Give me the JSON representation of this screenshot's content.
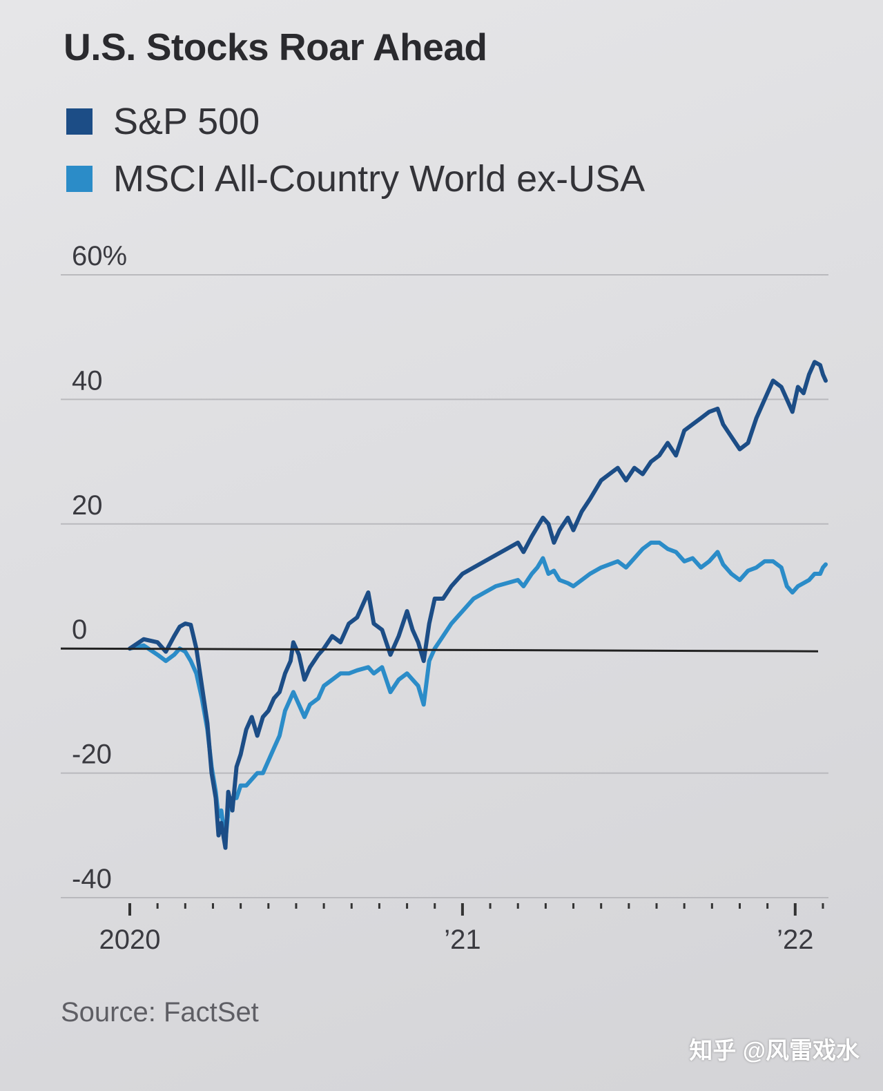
{
  "colors": {
    "sp500": "#1c4d86",
    "msci": "#2b8cc8",
    "grid": "#b9b9bd",
    "zero": "#222222",
    "text": "#3a3a40"
  },
  "source": "Source: FactSet",
  "watermark": "知乎 @风雷戏水",
  "chart_data": {
    "type": "line",
    "title": "U.S. Stocks Roar Ahead",
    "ylabel": "%",
    "ylim": [
      -40,
      60
    ],
    "yticks": [
      {
        "value": 60,
        "label": "60%"
      },
      {
        "value": 40,
        "label": "40"
      },
      {
        "value": 20,
        "label": "20"
      },
      {
        "value": 0,
        "label": "0"
      },
      {
        "value": -20,
        "label": "-20"
      },
      {
        "value": -40,
        "label": "-40"
      }
    ],
    "xlim": [
      0,
      25.2
    ],
    "xticks": [
      {
        "value": 0,
        "label": "2020"
      },
      {
        "value": 12,
        "label": "’21"
      },
      {
        "value": 24,
        "label": "’22"
      }
    ],
    "series": [
      {
        "name": "S&P 500",
        "points": [
          [
            0,
            0
          ],
          [
            0.5,
            1.5
          ],
          [
            1,
            1
          ],
          [
            1.3,
            -0.5
          ],
          [
            1.6,
            2
          ],
          [
            1.8,
            3.5
          ],
          [
            2,
            4
          ],
          [
            2.2,
            3.8
          ],
          [
            2.4,
            0
          ],
          [
            2.6,
            -6
          ],
          [
            2.8,
            -12
          ],
          [
            2.95,
            -20
          ],
          [
            3.1,
            -24
          ],
          [
            3.2,
            -30
          ],
          [
            3.3,
            -28
          ],
          [
            3.45,
            -32
          ],
          [
            3.55,
            -23
          ],
          [
            3.7,
            -26
          ],
          [
            3.85,
            -19
          ],
          [
            4,
            -17
          ],
          [
            4.2,
            -13
          ],
          [
            4.4,
            -11
          ],
          [
            4.6,
            -14
          ],
          [
            4.8,
            -11
          ],
          [
            5,
            -10
          ],
          [
            5.2,
            -8
          ],
          [
            5.4,
            -7
          ],
          [
            5.6,
            -4
          ],
          [
            5.8,
            -2
          ],
          [
            5.9,
            1
          ],
          [
            6.1,
            -1
          ],
          [
            6.3,
            -5
          ],
          [
            6.5,
            -3
          ],
          [
            6.8,
            -1
          ],
          [
            7,
            0
          ],
          [
            7.3,
            2
          ],
          [
            7.6,
            1
          ],
          [
            7.9,
            4
          ],
          [
            8.2,
            5
          ],
          [
            8.6,
            9
          ],
          [
            8.8,
            4
          ],
          [
            9.1,
            3
          ],
          [
            9.4,
            -1
          ],
          [
            9.7,
            2
          ],
          [
            10,
            6
          ],
          [
            10.2,
            3
          ],
          [
            10.4,
            1
          ],
          [
            10.6,
            -2
          ],
          [
            10.8,
            4
          ],
          [
            11,
            8
          ],
          [
            11.3,
            8
          ],
          [
            11.6,
            10
          ],
          [
            12,
            12
          ],
          [
            12.4,
            13
          ],
          [
            12.8,
            14
          ],
          [
            13.2,
            15
          ],
          [
            13.6,
            16
          ],
          [
            14,
            17
          ],
          [
            14.2,
            15.5
          ],
          [
            14.5,
            18
          ],
          [
            14.7,
            19.5
          ],
          [
            14.9,
            21
          ],
          [
            15.1,
            20
          ],
          [
            15.3,
            17
          ],
          [
            15.5,
            19
          ],
          [
            15.8,
            21
          ],
          [
            16,
            19
          ],
          [
            16.3,
            22
          ],
          [
            16.6,
            24
          ],
          [
            17,
            27
          ],
          [
            17.3,
            28
          ],
          [
            17.6,
            29
          ],
          [
            17.9,
            27
          ],
          [
            18.2,
            29
          ],
          [
            18.5,
            28
          ],
          [
            18.8,
            30
          ],
          [
            19.1,
            31
          ],
          [
            19.4,
            33
          ],
          [
            19.7,
            31
          ],
          [
            20,
            35
          ],
          [
            20.3,
            36
          ],
          [
            20.6,
            37
          ],
          [
            20.9,
            38
          ],
          [
            21.2,
            38.5
          ],
          [
            21.4,
            36
          ],
          [
            21.7,
            34
          ],
          [
            22,
            32
          ],
          [
            22.3,
            33
          ],
          [
            22.6,
            37
          ],
          [
            22.9,
            40
          ],
          [
            23.2,
            43
          ],
          [
            23.5,
            42
          ],
          [
            23.7,
            40
          ],
          [
            23.9,
            38
          ],
          [
            24.1,
            42
          ],
          [
            24.3,
            41
          ],
          [
            24.5,
            44
          ],
          [
            24.7,
            46
          ],
          [
            24.9,
            45.5
          ],
          [
            25,
            44
          ],
          [
            25.1,
            43
          ]
        ]
      },
      {
        "name": "MSCI All-Country World ex-USA",
        "points": [
          [
            0,
            0
          ],
          [
            0.5,
            0.5
          ],
          [
            1,
            -1
          ],
          [
            1.3,
            -2
          ],
          [
            1.6,
            -1
          ],
          [
            1.8,
            0
          ],
          [
            2,
            -0.5
          ],
          [
            2.2,
            -2
          ],
          [
            2.4,
            -4
          ],
          [
            2.6,
            -8
          ],
          [
            2.8,
            -13
          ],
          [
            2.95,
            -19
          ],
          [
            3.1,
            -23
          ],
          [
            3.2,
            -27
          ],
          [
            3.3,
            -26
          ],
          [
            3.45,
            -31
          ],
          [
            3.55,
            -26
          ],
          [
            3.7,
            -24
          ],
          [
            3.85,
            -24
          ],
          [
            4,
            -22
          ],
          [
            4.2,
            -22
          ],
          [
            4.4,
            -21
          ],
          [
            4.6,
            -20
          ],
          [
            4.8,
            -20
          ],
          [
            5,
            -18
          ],
          [
            5.2,
            -16
          ],
          [
            5.4,
            -14
          ],
          [
            5.6,
            -10
          ],
          [
            5.8,
            -8
          ],
          [
            5.9,
            -7
          ],
          [
            6.1,
            -9
          ],
          [
            6.3,
            -11
          ],
          [
            6.5,
            -9
          ],
          [
            6.8,
            -8
          ],
          [
            7,
            -6
          ],
          [
            7.3,
            -5
          ],
          [
            7.6,
            -4
          ],
          [
            7.9,
            -4
          ],
          [
            8.2,
            -3.5
          ],
          [
            8.6,
            -3
          ],
          [
            8.8,
            -4
          ],
          [
            9.1,
            -3
          ],
          [
            9.4,
            -7
          ],
          [
            9.7,
            -5
          ],
          [
            10,
            -4
          ],
          [
            10.2,
            -5
          ],
          [
            10.4,
            -6
          ],
          [
            10.6,
            -9
          ],
          [
            10.8,
            -2
          ],
          [
            11,
            0
          ],
          [
            11.3,
            2
          ],
          [
            11.6,
            4
          ],
          [
            12,
            6
          ],
          [
            12.4,
            8
          ],
          [
            12.8,
            9
          ],
          [
            13.2,
            10
          ],
          [
            13.6,
            10.5
          ],
          [
            14,
            11
          ],
          [
            14.2,
            10
          ],
          [
            14.5,
            12
          ],
          [
            14.7,
            13
          ],
          [
            14.9,
            14.5
          ],
          [
            15.1,
            12
          ],
          [
            15.3,
            12.5
          ],
          [
            15.5,
            11
          ],
          [
            15.8,
            10.5
          ],
          [
            16,
            10
          ],
          [
            16.3,
            11
          ],
          [
            16.6,
            12
          ],
          [
            17,
            13
          ],
          [
            17.3,
            13.5
          ],
          [
            17.6,
            14
          ],
          [
            17.9,
            13
          ],
          [
            18.2,
            14.5
          ],
          [
            18.5,
            16
          ],
          [
            18.8,
            17
          ],
          [
            19.1,
            17
          ],
          [
            19.4,
            16
          ],
          [
            19.7,
            15.5
          ],
          [
            20,
            14
          ],
          [
            20.3,
            14.5
          ],
          [
            20.6,
            13
          ],
          [
            20.9,
            14
          ],
          [
            21.2,
            15.5
          ],
          [
            21.4,
            13.5
          ],
          [
            21.7,
            12
          ],
          [
            22,
            11
          ],
          [
            22.3,
            12.5
          ],
          [
            22.6,
            13
          ],
          [
            22.9,
            14
          ],
          [
            23.2,
            14
          ],
          [
            23.5,
            13
          ],
          [
            23.7,
            10
          ],
          [
            23.9,
            9
          ],
          [
            24.1,
            10
          ],
          [
            24.3,
            10.5
          ],
          [
            24.5,
            11
          ],
          [
            24.7,
            12
          ],
          [
            24.9,
            12
          ],
          [
            25,
            13
          ],
          [
            25.1,
            13.5
          ]
        ]
      }
    ]
  }
}
